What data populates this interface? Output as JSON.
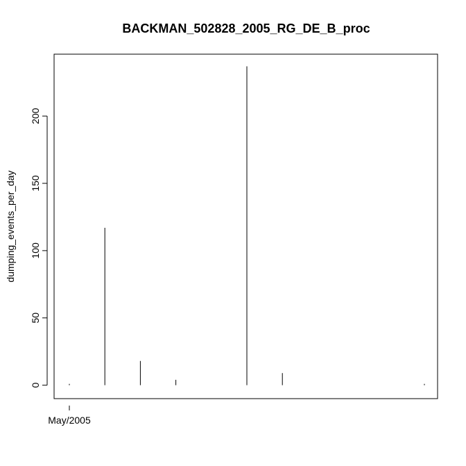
{
  "chart_data": {
    "type": "bar",
    "style": "vertical-lines",
    "title": "BACKMAN_502828_2005_RG_DE_B_proc",
    "xlabel": "",
    "ylabel": "dumping_events_per_day",
    "x_tick_labels": [
      "May/2005"
    ],
    "y_ticks": [
      0,
      50,
      100,
      150,
      200
    ],
    "ylim": [
      -10,
      246
    ],
    "series": [
      {
        "values": [
          1,
          117,
          18,
          4,
          0,
          237,
          9,
          0,
          0,
          0,
          1
        ]
      }
    ],
    "grid": false,
    "legend": "none",
    "line_color": "#000000"
  }
}
